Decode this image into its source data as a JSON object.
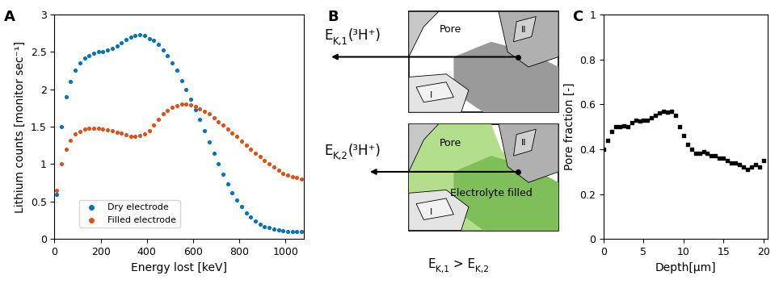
{
  "chart_data": [
    {
      "type": "scatter",
      "title": "A",
      "x_label": "Energy lost [keV]",
      "y_label": "Lithium counts [monitor sec⁻¹]",
      "x": [
        10,
        30,
        50,
        70,
        90,
        110,
        130,
        150,
        170,
        190,
        210,
        230,
        250,
        270,
        290,
        310,
        330,
        350,
        370,
        390,
        410,
        430,
        450,
        470,
        490,
        510,
        530,
        550,
        570,
        590,
        610,
        630,
        650,
        670,
        690,
        710,
        730,
        750,
        770,
        790,
        810,
        830,
        850,
        870,
        890,
        910,
        930,
        950,
        970,
        990,
        1010,
        1030,
        1050,
        1070
      ],
      "series": [
        {
          "name": "Dry electrode",
          "color": "#0072bd",
          "marker": "o",
          "values": [
            0.6,
            1.5,
            1.9,
            2.1,
            2.25,
            2.35,
            2.42,
            2.45,
            2.48,
            2.5,
            2.5,
            2.52,
            2.55,
            2.58,
            2.62,
            2.66,
            2.7,
            2.72,
            2.73,
            2.72,
            2.68,
            2.65,
            2.6,
            2.52,
            2.45,
            2.35,
            2.25,
            2.12,
            2.0,
            1.87,
            1.73,
            1.6,
            1.45,
            1.3,
            1.15,
            1.0,
            0.87,
            0.74,
            0.62,
            0.52,
            0.43,
            0.35,
            0.29,
            0.24,
            0.2,
            0.17,
            0.15,
            0.13,
            0.12,
            0.11,
            0.1,
            0.1,
            0.1,
            0.1
          ]
        },
        {
          "name": "Filled electrode",
          "color": "#d95319",
          "marker": "o",
          "values": [
            0.65,
            1.0,
            1.2,
            1.32,
            1.4,
            1.44,
            1.47,
            1.48,
            1.48,
            1.48,
            1.47,
            1.46,
            1.45,
            1.43,
            1.41,
            1.39,
            1.37,
            1.37,
            1.38,
            1.4,
            1.45,
            1.52,
            1.6,
            1.67,
            1.72,
            1.76,
            1.78,
            1.8,
            1.8,
            1.79,
            1.77,
            1.74,
            1.71,
            1.67,
            1.62,
            1.57,
            1.52,
            1.47,
            1.42,
            1.37,
            1.31,
            1.25,
            1.2,
            1.15,
            1.1,
            1.05,
            1.0,
            0.96,
            0.92,
            0.88,
            0.85,
            0.83,
            0.82,
            0.8
          ]
        }
      ],
      "xlim": [
        0,
        1080
      ],
      "xticks": [
        0,
        200,
        400,
        600,
        800,
        1000
      ],
      "ylim": [
        0,
        3
      ],
      "yticks": [
        0,
        0.5,
        1,
        1.5,
        2,
        2.5,
        3
      ],
      "legend": "lower left"
    },
    {
      "type": "scatter",
      "title": "C",
      "x_label": "Depth[µm]",
      "y_label": "Pore fraction [-]",
      "x": [
        0,
        0.5,
        1,
        1.5,
        2,
        2.5,
        3,
        3.5,
        4,
        4.5,
        5,
        5.5,
        6,
        6.5,
        7,
        7.5,
        8,
        8.5,
        9,
        9.5,
        10,
        10.5,
        11,
        11.5,
        12,
        12.5,
        13,
        13.5,
        14,
        14.5,
        15,
        15.5,
        16,
        16.5,
        17,
        17.5,
        18,
        18.5,
        19,
        19.5,
        20
      ],
      "values": [
        0.4,
        0.44,
        0.48,
        0.5,
        0.5,
        0.505,
        0.5,
        0.52,
        0.53,
        0.525,
        0.53,
        0.53,
        0.54,
        0.55,
        0.56,
        0.57,
        0.565,
        0.57,
        0.55,
        0.5,
        0.46,
        0.42,
        0.4,
        0.38,
        0.38,
        0.39,
        0.38,
        0.37,
        0.37,
        0.36,
        0.36,
        0.35,
        0.34,
        0.34,
        0.33,
        0.32,
        0.31,
        0.32,
        0.33,
        0.32,
        0.35
      ],
      "color": "#000000",
      "marker": "s",
      "xlim": [
        0,
        20.5
      ],
      "xticks": [
        0,
        5,
        10,
        15,
        20
      ],
      "ylim": [
        0,
        1
      ],
      "yticks": [
        0,
        0.2,
        0.4,
        0.6,
        0.8,
        1
      ]
    }
  ],
  "diagram": {
    "title": "B",
    "top": {
      "beam_label": [
        {
          "text": "E"
        },
        {
          "text": "K,1",
          "sub": true
        },
        {
          "text": "(³H⁺)"
        }
      ],
      "texts": [
        "Pore"
      ],
      "grains": [
        "I",
        "II"
      ]
    },
    "bottom": {
      "beam_label": [
        {
          "text": "E"
        },
        {
          "text": "K,2",
          "sub": true
        },
        {
          "text": "(³H⁺)"
        }
      ],
      "texts": [
        "Pore",
        "Electrolyte filled"
      ],
      "grains": [
        "I",
        "II"
      ]
    },
    "caption": [
      {
        "text": "E"
      },
      {
        "text": "K,1",
        "sub": true
      },
      {
        "text": " > E"
      },
      {
        "text": "K,2",
        "sub": true
      }
    ]
  }
}
